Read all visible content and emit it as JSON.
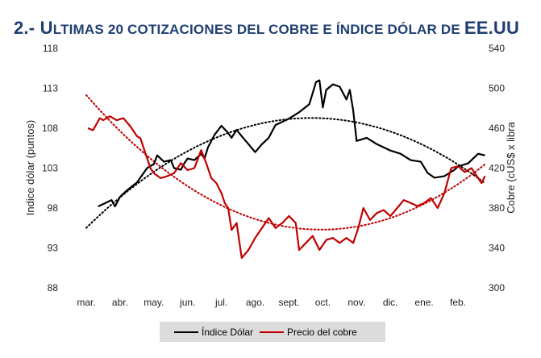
{
  "title_prefix": "2.- ",
  "title_rest": "Ultimas 20 cotizaciones del cobre e índice dólar de EE.UU",
  "chart_data": {
    "type": "line",
    "ylabel": "Indice dólar (puntos)",
    "y2label": "Cobre (cUS$ x libra",
    "ylim": [
      88,
      118
    ],
    "y_ticks": [
      "88",
      "93",
      "98",
      "103",
      "108",
      "113",
      "118"
    ],
    "y2lim": [
      300,
      540
    ],
    "y2_ticks": [
      "300",
      "340",
      "380",
      "420",
      "460",
      "500",
      "540"
    ],
    "x_ticks": [
      "mar.",
      "abr.",
      "may.",
      "jun.",
      "jul.",
      "ago.",
      "sept.",
      "oct.",
      "nov.",
      "dic.",
      "ene.",
      "feb."
    ],
    "legend_position": "bottom",
    "series": [
      {
        "name": "Índice Dólar",
        "axis": "left",
        "color": "#000000",
        "x": [
          0.35,
          0.55,
          0.75,
          0.85,
          1.0,
          1.2,
          1.5,
          1.8,
          2.0,
          2.1,
          2.3,
          2.5,
          2.6,
          2.8,
          2.9,
          3.0,
          3.2,
          3.4,
          3.5,
          3.6,
          3.8,
          4.0,
          4.2,
          4.3,
          4.45,
          4.6,
          4.8,
          5.0,
          5.2,
          5.4,
          5.6,
          5.8,
          6.0,
          6.3,
          6.6,
          6.8,
          6.9,
          7.0,
          7.1,
          7.3,
          7.5,
          7.7,
          7.8,
          7.9,
          8.0,
          8.3,
          8.6,
          9.0,
          9.3,
          9.6,
          9.9,
          10.1,
          10.3,
          10.6,
          10.9,
          11.0,
          11.3,
          11.6,
          11.8
        ],
        "values": [
          98.2,
          98.6,
          99.0,
          98.2,
          99.4,
          100.2,
          101.2,
          103.0,
          103.5,
          104.6,
          103.8,
          104.0,
          103.0,
          102.8,
          103.6,
          104.2,
          104.0,
          104.8,
          104.2,
          105.6,
          107.2,
          108.3,
          107.4,
          106.8,
          107.8,
          107.0,
          106.0,
          105.0,
          106.0,
          106.8,
          108.4,
          108.8,
          109.2,
          110.0,
          111.0,
          113.8,
          114.0,
          110.6,
          112.8,
          113.5,
          113.2,
          111.6,
          112.8,
          110.2,
          106.4,
          106.8,
          106.0,
          105.2,
          104.8,
          104.0,
          103.8,
          102.4,
          101.8,
          102.0,
          102.8,
          103.2,
          103.6,
          104.8,
          104.6
        ]
      },
      {
        "name": "Precio del cobre",
        "axis": "right",
        "color": "#c00000",
        "x": [
          0.05,
          0.2,
          0.4,
          0.5,
          0.7,
          0.9,
          1.1,
          1.3,
          1.5,
          1.6,
          1.75,
          1.9,
          2.0,
          2.2,
          2.4,
          2.6,
          2.8,
          3.0,
          3.2,
          3.4,
          3.55,
          3.7,
          3.85,
          4.0,
          4.1,
          4.2,
          4.3,
          4.45,
          4.6,
          4.8,
          5.0,
          5.2,
          5.4,
          5.6,
          5.8,
          6.0,
          6.2,
          6.3,
          6.5,
          6.7,
          6.9,
          7.1,
          7.3,
          7.5,
          7.7,
          7.9,
          8.05,
          8.2,
          8.4,
          8.6,
          8.8,
          9.0,
          9.2,
          9.4,
          9.6,
          9.8,
          10.0,
          10.2,
          10.4,
          10.6,
          10.8,
          11.0,
          11.2,
          11.4,
          11.6,
          11.7,
          11.8
        ],
        "values": [
          460,
          458,
          470,
          468,
          472,
          468,
          470,
          462,
          452,
          450,
          435,
          420,
          415,
          410,
          412,
          415,
          425,
          418,
          420,
          438,
          425,
          410,
          405,
          395,
          385,
          380,
          358,
          365,
          330,
          338,
          350,
          360,
          370,
          360,
          365,
          372,
          365,
          338,
          345,
          352,
          338,
          348,
          350,
          345,
          350,
          345,
          360,
          380,
          368,
          375,
          378,
          372,
          380,
          388,
          385,
          382,
          385,
          390,
          380,
          395,
          420,
          422,
          416,
          420,
          410,
          405,
          412
        ]
      }
    ],
    "trendlines": [
      {
        "series": "Índice Dólar",
        "style": "dotted",
        "color": "#000000"
      },
      {
        "series": "Precio del cobre",
        "style": "dotted",
        "color": "#c00000"
      }
    ]
  }
}
